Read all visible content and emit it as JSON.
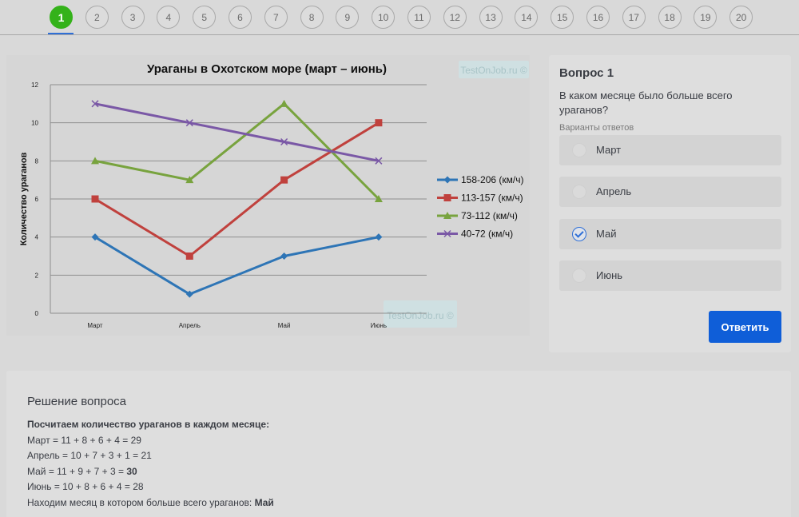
{
  "nav": {
    "questions": [
      "1",
      "2",
      "3",
      "4",
      "5",
      "6",
      "7",
      "8",
      "9",
      "10",
      "11",
      "12",
      "13",
      "14",
      "15",
      "16",
      "17",
      "18",
      "19",
      "20"
    ],
    "active_index": 0
  },
  "chart_watermark": "TestOnJob.ru ©",
  "chart_data": {
    "type": "line",
    "title": "Ураганы в Охотском море (март – июнь)",
    "xlabel": "",
    "ylabel": "Количество ураганов",
    "categories": [
      "Март",
      "Апрель",
      "Май",
      "Июнь"
    ],
    "ylim": [
      0,
      12
    ],
    "yticks": [
      0,
      2,
      4,
      6,
      8,
      10,
      12
    ],
    "grid": true,
    "legend_position": "right",
    "series": [
      {
        "name": "158-206 (км/ч)",
        "values": [
          4,
          1,
          3,
          4
        ],
        "color": "#2e75b6",
        "marker": "diamond"
      },
      {
        "name": "113-157 (км/ч)",
        "values": [
          6,
          3,
          7,
          10
        ],
        "color": "#c0413d",
        "marker": "square"
      },
      {
        "name": "73-112 (км/ч)",
        "values": [
          8,
          7,
          11,
          6
        ],
        "color": "#78a33e",
        "marker": "triangle"
      },
      {
        "name": "40-72 (км/ч)",
        "values": [
          11,
          10,
          9,
          8
        ],
        "color": "#7a58a6",
        "marker": "x"
      }
    ]
  },
  "question": {
    "title": "Вопрос 1",
    "text": "В каком месяце было больше всего ураганов?",
    "variants_label": "Варианты ответов",
    "options": [
      {
        "label": "Март",
        "checked": false
      },
      {
        "label": "Апрель",
        "checked": false
      },
      {
        "label": "Май",
        "checked": true
      },
      {
        "label": "Июнь",
        "checked": false
      }
    ],
    "answer_button": "Ответить"
  },
  "solution": {
    "title": "Решение вопроса",
    "intro": "Посчитаем количество ураганов в каждом месяце:",
    "lines": [
      {
        "text": "Март = 11 + 8 + 6 + 4 = 29",
        "bold": ""
      },
      {
        "text": "Апрель = 10 + 7 + 3 + 1 = 21",
        "bold": ""
      },
      {
        "text": "Май = 11 + 9 + 7 + 3 = ",
        "bold": "30"
      },
      {
        "text": "Июнь = 10 + 8 + 6 + 4 = 28",
        "bold": ""
      }
    ],
    "conclusion": "Находим месяц в котором больше всего ураганов: ",
    "conclusion_bold": "Май"
  }
}
